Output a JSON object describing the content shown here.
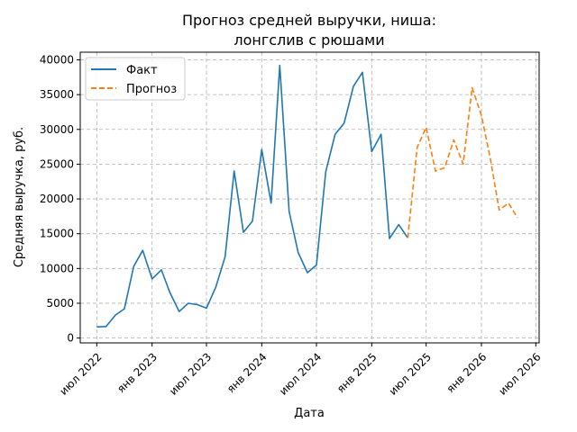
{
  "chart_data": {
    "type": "line",
    "title_lines": [
      "Прогноз средней выручки, ниша:",
      "лонгслив с рюшами"
    ],
    "xlabel": "Дата",
    "ylabel": "Средняя выручка, руб.",
    "x_ticks": [
      {
        "date": "2022-07",
        "label": "июл 2022"
      },
      {
        "date": "2023-01",
        "label": "янв 2023"
      },
      {
        "date": "2023-07",
        "label": "июл 2023"
      },
      {
        "date": "2024-01",
        "label": "янв 2024"
      },
      {
        "date": "2024-07",
        "label": "июл 2024"
      },
      {
        "date": "2025-01",
        "label": "янв 2025"
      },
      {
        "date": "2025-07",
        "label": "июл 2025"
      },
      {
        "date": "2026-01",
        "label": "янв 2026"
      },
      {
        "date": "2026-07",
        "label": "июл 2026"
      }
    ],
    "y_ticks": [
      0,
      5000,
      10000,
      15000,
      20000,
      25000,
      30000,
      35000,
      40000
    ],
    "xlim": [
      "2022-05-07",
      "2026-07-12"
    ],
    "ylim": [
      -700,
      41100
    ],
    "grid": true,
    "legend_position": "top-left",
    "series": [
      {
        "name": "Факт",
        "color": "#1f77b4",
        "style": "solid",
        "points": [
          [
            "2022-07",
            1600
          ],
          [
            "2022-08",
            1650
          ],
          [
            "2022-09",
            3300
          ],
          [
            "2022-10",
            4200
          ],
          [
            "2022-11",
            10300
          ],
          [
            "2022-12",
            12600
          ],
          [
            "2023-01",
            8500
          ],
          [
            "2023-02",
            9800
          ],
          [
            "2023-03",
            6600
          ],
          [
            "2023-04",
            3800
          ],
          [
            "2023-05",
            5000
          ],
          [
            "2023-06",
            4800
          ],
          [
            "2023-07",
            4300
          ],
          [
            "2023-08",
            7300
          ],
          [
            "2023-09",
            11700
          ],
          [
            "2023-10",
            24000
          ],
          [
            "2023-11",
            15200
          ],
          [
            "2023-12",
            16800
          ],
          [
            "2024-01",
            27100
          ],
          [
            "2024-02",
            19400
          ],
          [
            "2024-03",
            39200
          ],
          [
            "2024-04",
            18200
          ],
          [
            "2024-05",
            12300
          ],
          [
            "2024-06",
            9400
          ],
          [
            "2024-07",
            10500
          ],
          [
            "2024-08",
            23900
          ],
          [
            "2024-09",
            29300
          ],
          [
            "2024-10",
            30900
          ],
          [
            "2024-11",
            36200
          ],
          [
            "2024-12",
            38200
          ],
          [
            "2025-01",
            26800
          ],
          [
            "2025-02",
            29300
          ],
          [
            "2025-03",
            14300
          ],
          [
            "2025-04",
            16300
          ],
          [
            "2025-05",
            14400
          ]
        ]
      },
      {
        "name": "Прогноз",
        "color": "#ff7f0e",
        "style": "dashed",
        "points": [
          [
            "2025-05",
            14400
          ],
          [
            "2025-06",
            27400
          ],
          [
            "2025-07",
            30300
          ],
          [
            "2025-08",
            24000
          ],
          [
            "2025-09",
            24500
          ],
          [
            "2025-10",
            28500
          ],
          [
            "2025-11",
            25000
          ],
          [
            "2025-12",
            36000
          ],
          [
            "2026-01",
            32000
          ],
          [
            "2026-02",
            25500
          ],
          [
            "2026-03",
            18400
          ],
          [
            "2026-04",
            19400
          ],
          [
            "2026-05",
            17300
          ]
        ]
      }
    ]
  }
}
